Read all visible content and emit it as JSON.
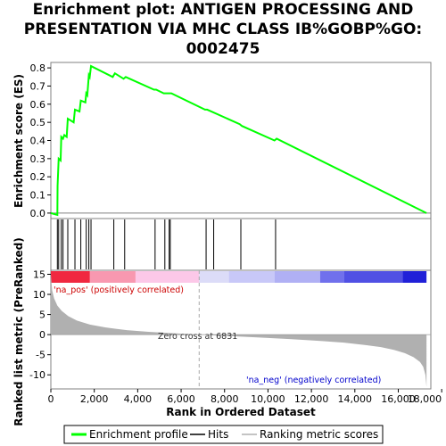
{
  "title_lines": [
    "Enrichment plot: ANTIGEN PROCESSING AND",
    "PRESENTATION VIA MHC CLASS IB%GOBP%GO:",
    "0002475"
  ],
  "chart_data": {
    "type": "line",
    "x_label": "Rank in Ordered Dataset",
    "es_axis": {
      "label": "Enrichment score (ES)",
      "ylim": [
        -0.03,
        0.83
      ],
      "ticks": [
        0.0,
        0.1,
        0.2,
        0.3,
        0.4,
        0.5,
        0.6,
        0.7,
        0.8
      ],
      "tick_labels": [
        "0.0",
        "0.1",
        "0.2",
        "0.3",
        "0.4",
        "0.5",
        "0.6",
        "0.7",
        "0.8"
      ]
    },
    "metric_axis": {
      "label": "Ranked list metric (PreRanked)",
      "ylim": [
        -13.5,
        16
      ],
      "ticks": [
        -10,
        -5,
        0,
        5,
        10,
        15
      ],
      "tick_labels": [
        "-10",
        "-5",
        "0",
        "5",
        "10",
        "15"
      ]
    },
    "xlim": [
      0,
      17500
    ],
    "x_ticks": [
      0,
      2000,
      4000,
      6000,
      8000,
      10000,
      12000,
      14000,
      16000,
      18000
    ],
    "x_tick_labels": [
      "0",
      "2,000",
      "4,000",
      "6,000",
      "8,000",
      "10,000",
      "12,000",
      "14,000",
      "16,000",
      "18,000"
    ],
    "enrichment_profile": {
      "name": "Enrichment profile",
      "color": "#00ff00",
      "x": [
        0,
        300,
        310,
        360,
        450,
        480,
        560,
        620,
        730,
        780,
        1050,
        1110,
        1320,
        1380,
        1590,
        1630,
        1680,
        1750,
        1790,
        1850,
        2850,
        2950,
        3350,
        3450,
        4750,
        4850,
        5200,
        5350,
        5450,
        5550,
        7100,
        7200,
        8700,
        8800,
        10300,
        10400,
        17300
      ],
      "y": [
        0.0,
        -0.01,
        0.15,
        0.3,
        0.29,
        0.42,
        0.41,
        0.43,
        0.42,
        0.52,
        0.5,
        0.57,
        0.56,
        0.62,
        0.61,
        0.66,
        0.65,
        0.76,
        0.75,
        0.81,
        0.75,
        0.77,
        0.74,
        0.75,
        0.68,
        0.68,
        0.66,
        0.66,
        0.66,
        0.66,
        0.57,
        0.57,
        0.49,
        0.48,
        0.4,
        0.41,
        0.0
      ]
    },
    "hits": {
      "name": "Hits",
      "color": "#000000",
      "positions": [
        300,
        360,
        480,
        560,
        780,
        1110,
        1380,
        1630,
        1750,
        1850,
        2900,
        3400,
        4800,
        5250,
        5450,
        5500,
        7150,
        7500,
        8750,
        10350
      ]
    },
    "ranked_metric": {
      "name": "Ranking metric scores",
      "color": "#b0b0b0",
      "zero_cross": 6831,
      "zero_cross_label": "Zero cross at 6831",
      "x": [
        0,
        60,
        150,
        300,
        500,
        800,
        1200,
        1800,
        2500,
        3500,
        4500,
        5500,
        6300,
        6831,
        8000,
        9500,
        11000,
        12500,
        13500,
        14500,
        15200,
        15800,
        16300,
        16700,
        17000,
        17150,
        17250,
        17300
      ],
      "y": [
        15.0,
        11.0,
        9.0,
        7.2,
        5.9,
        4.6,
        3.5,
        2.5,
        1.8,
        1.1,
        0.7,
        0.4,
        0.15,
        0.0,
        -0.3,
        -0.7,
        -1.1,
        -1.6,
        -2.0,
        -2.6,
        -3.1,
        -3.8,
        -4.6,
        -5.6,
        -6.8,
        -8.0,
        -10.0,
        -13.0
      ]
    },
    "color_bar": {
      "x_starts": [
        0,
        1800,
        3900,
        6831,
        8200,
        10300,
        12400,
        13500,
        16200,
        17300
      ],
      "colors": [
        "#f02840",
        "#f898b0",
        "#fcc8e8",
        "#dcdcf8",
        "#c8c8f8",
        "#b0b0f4",
        "#7070ec",
        "#5050e4",
        "#2020d8"
      ]
    },
    "pos_label": "'na_pos' (positively correlated)",
    "neg_label": "'na_neg' (negatively correlated)",
    "pos_color": "#cc0000",
    "neg_color": "#0000cc",
    "legend": {
      "placement": "bottom",
      "entries": [
        "Enrichment profile",
        "Hits",
        "Ranking metric scores"
      ]
    }
  }
}
